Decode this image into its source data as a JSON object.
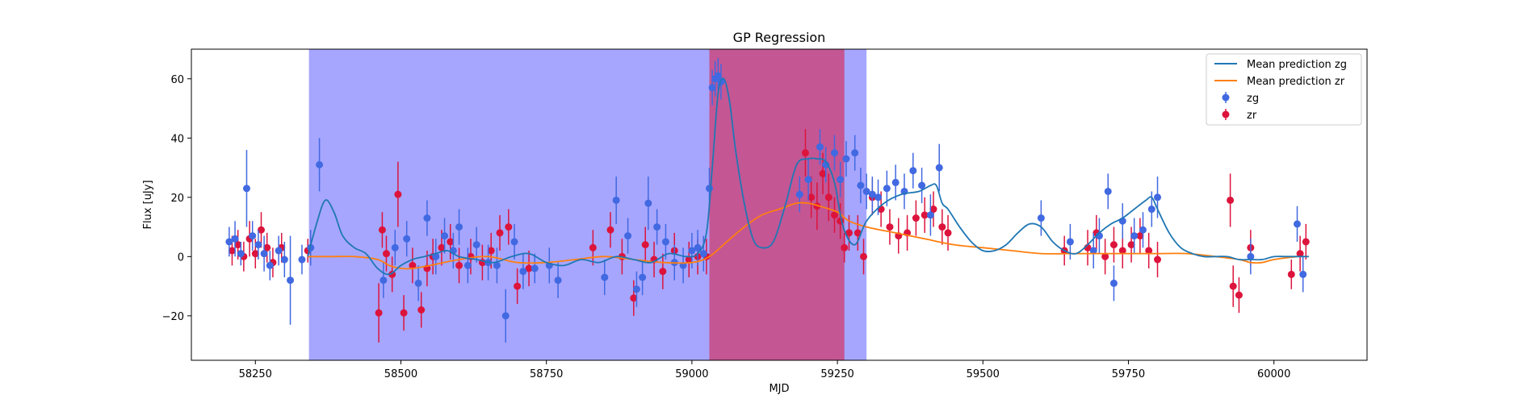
{
  "chart_data": {
    "type": "scatter",
    "title": "GP Regression",
    "xlabel": "MJD",
    "ylabel": "Flux [uJy]",
    "xlim": [
      58140,
      60160
    ],
    "ylim": [
      -35,
      70
    ],
    "xticks": [
      58250,
      58500,
      58750,
      59000,
      59250,
      59500,
      59750,
      60000
    ],
    "yticks": [
      -20,
      0,
      20,
      40,
      60
    ],
    "grid": false,
    "legend_position": "top-right",
    "colors": {
      "zg_line": "#1f77b4",
      "zr_line": "#ff7f0e",
      "zg_points": "#4169e1",
      "zr_points": "#dc143c",
      "span_blue": "#0000ff",
      "span_red": "#dc143c"
    },
    "shaded_regions": [
      {
        "x0": 58342,
        "x1": 59300,
        "color": "blue"
      },
      {
        "x0": 59030,
        "x1": 59262,
        "color": "red"
      }
    ],
    "series": [
      {
        "name": "Mean prediction zg",
        "kind": "line",
        "x": [
          58340,
          58355,
          58370,
          58385,
          58400,
          58420,
          58440,
          58460,
          58480,
          58500,
          58520,
          58540,
          58560,
          58580,
          58600,
          58630,
          58660,
          58690,
          58720,
          58750,
          58780,
          58810,
          58840,
          58870,
          58900,
          58930,
          58960,
          58990,
          59010,
          59025,
          59035,
          59045,
          59055,
          59065,
          59075,
          59090,
          59105,
          59120,
          59140,
          59160,
          59180,
          59200,
          59215,
          59230,
          59245,
          59260,
          59280,
          59300,
          59330,
          59360,
          59390,
          59410,
          59420,
          59430,
          59440,
          59460,
          59480,
          59500,
          59520,
          59540,
          59560,
          59580,
          59600,
          59620,
          59640,
          59660,
          59680,
          59700,
          59720,
          59740,
          59760,
          59780,
          59790,
          59800,
          59820,
          59840,
          59860,
          59880,
          59900,
          59920,
          59940,
          59960,
          59980,
          60000,
          60020,
          60040,
          60060
        ],
        "y": [
          0,
          11,
          19,
          15,
          7,
          3,
          1,
          -4,
          -6,
          -3,
          -1,
          0,
          1,
          2,
          0,
          -1,
          -2,
          0,
          1,
          -2,
          -3,
          -1,
          -2,
          0,
          -1,
          -2,
          1,
          0,
          1,
          8,
          30,
          55,
          60,
          52,
          36,
          18,
          6,
          3,
          5,
          17,
          31,
          33,
          33,
          32,
          25,
          10,
          4,
          12,
          18,
          21,
          22,
          24,
          24,
          18,
          16,
          10,
          5,
          2,
          2,
          4,
          8,
          11,
          10,
          5,
          2,
          1,
          4,
          8,
          11,
          13,
          16,
          19,
          20,
          16,
          8,
          3,
          1,
          0,
          0,
          0,
          -1,
          -1,
          -1,
          0,
          0,
          0,
          0
        ]
      },
      {
        "name": "Mean prediction zr",
        "kind": "line",
        "x": [
          58340,
          58380,
          58420,
          58460,
          58480,
          58500,
          58520,
          58550,
          58600,
          58650,
          58700,
          58750,
          58800,
          58850,
          58900,
          58950,
          59000,
          59030,
          59060,
          59090,
          59120,
          59150,
          59180,
          59200,
          59220,
          59250,
          59270,
          59300,
          59350,
          59400,
          59450,
          59500,
          59550,
          59600,
          59650,
          59700,
          59750,
          59800,
          59850,
          59900,
          59940,
          59960,
          59980,
          60000,
          60040
        ],
        "y": [
          0,
          0,
          0,
          -1,
          -3,
          -4,
          -4,
          -3,
          -1,
          0,
          -2,
          -2,
          -1,
          0,
          -1,
          -2,
          -2,
          0,
          5,
          10,
          14,
          16,
          18,
          18,
          17,
          15,
          12,
          10,
          8,
          6,
          4,
          3,
          2,
          1,
          1,
          1,
          1,
          1,
          1,
          0,
          -1,
          -2,
          -2,
          -1,
          0
        ]
      },
      {
        "name": "zg",
        "kind": "errorbar",
        "x": [
          58205,
          58215,
          58225,
          58235,
          58245,
          58255,
          58265,
          58275,
          58290,
          58300,
          58310,
          58330,
          58345,
          58360,
          58470,
          58490,
          58510,
          58530,
          58545,
          58560,
          58575,
          58590,
          58600,
          58615,
          58630,
          58650,
          58665,
          58680,
          58695,
          58710,
          58730,
          58755,
          58770,
          58850,
          58870,
          58890,
          58905,
          58915,
          58925,
          58940,
          58955,
          58970,
          58985,
          59000,
          59010,
          59020,
          59030,
          59035,
          59040,
          59045,
          59050,
          59185,
          59200,
          59220,
          59230,
          59245,
          59255,
          59265,
          59280,
          59290,
          59300,
          59310,
          59320,
          59335,
          59350,
          59365,
          59380,
          59395,
          59410,
          59425,
          59600,
          59650,
          59690,
          59700,
          59715,
          59725,
          59740,
          59760,
          59775,
          59790,
          59800,
          59960,
          60040,
          60050
        ],
        "y": [
          5,
          6,
          1,
          23,
          7,
          4,
          1,
          -3,
          2,
          -1,
          -8,
          -1,
          3,
          31,
          -8,
          3,
          6,
          -9,
          13,
          0,
          7,
          2,
          10,
          -3,
          4,
          -2,
          -3,
          -20,
          5,
          -5,
          -4,
          -3,
          -8,
          -7,
          19,
          7,
          -11,
          -7,
          18,
          10,
          5,
          -2,
          -3,
          2,
          3,
          1,
          23,
          57,
          60,
          61,
          59,
          21,
          26,
          37,
          31,
          35,
          26,
          33,
          35,
          24,
          22,
          21,
          20,
          23,
          25,
          22,
          29,
          24,
          14,
          30,
          13,
          5,
          2,
          7,
          22,
          -9,
          12,
          7,
          9,
          16,
          20,
          0,
          11,
          -6
        ],
        "err": [
          5,
          6,
          4,
          13,
          5,
          5,
          6,
          5,
          5,
          6,
          15,
          5,
          6,
          9,
          6,
          6,
          6,
          6,
          6,
          6,
          6,
          6,
          6,
          6,
          6,
          6,
          6,
          9,
          6,
          6,
          5,
          6,
          6,
          6,
          8,
          6,
          6,
          6,
          9,
          6,
          6,
          6,
          6,
          6,
          6,
          6,
          7,
          6,
          6,
          6,
          6,
          6,
          7,
          6,
          6,
          6,
          6,
          6,
          6,
          6,
          6,
          6,
          6,
          6,
          6,
          6,
          6,
          6,
          7,
          8,
          6,
          6,
          6,
          6,
          6,
          6,
          6,
          6,
          6,
          6,
          7,
          6,
          6,
          6
        ]
      },
      {
        "name": "zr",
        "kind": "errorbar",
        "x": [
          58210,
          58220,
          58230,
          58240,
          58250,
          58260,
          58270,
          58280,
          58295,
          58340,
          58462,
          58468,
          58475,
          58485,
          58495,
          58505,
          58520,
          58535,
          58545,
          58555,
          58570,
          58585,
          58600,
          58620,
          58640,
          58655,
          58670,
          58685,
          58700,
          58720,
          58830,
          58860,
          58880,
          58900,
          58920,
          58935,
          58950,
          58970,
          58995,
          59010,
          59025,
          59195,
          59205,
          59215,
          59225,
          59235,
          59245,
          59255,
          59262,
          59270,
          59285,
          59295,
          59310,
          59325,
          59340,
          59355,
          59370,
          59385,
          59400,
          59415,
          59430,
          59440,
          59640,
          59680,
          59695,
          59710,
          59725,
          59740,
          59755,
          59770,
          59785,
          59800,
          59925,
          59930,
          59940,
          59960,
          60030,
          60045,
          60055
        ],
        "y": [
          2,
          4,
          0,
          6,
          1,
          9,
          3,
          -2,
          3,
          2,
          -19,
          9,
          1,
          -6,
          21,
          -19,
          -3,
          -18,
          -4,
          0,
          3,
          5,
          -3,
          0,
          -2,
          2,
          8,
          10,
          -10,
          -4,
          3,
          9,
          0,
          -14,
          4,
          -1,
          -5,
          2,
          -1,
          0,
          0,
          35,
          20,
          17,
          28,
          20,
          14,
          12,
          3,
          8,
          8,
          0,
          20,
          16,
          10,
          7,
          8,
          13,
          14,
          16,
          10,
          8,
          2,
          3,
          8,
          0,
          4,
          2,
          4,
          7,
          2,
          -1,
          19,
          -10,
          -13,
          3,
          -6,
          1,
          5
        ],
        "err": [
          5,
          5,
          5,
          6,
          5,
          6,
          5,
          5,
          5,
          4,
          10,
          6,
          6,
          6,
          11,
          6,
          6,
          6,
          6,
          6,
          6,
          6,
          6,
          6,
          6,
          6,
          6,
          6,
          6,
          6,
          6,
          6,
          6,
          6,
          6,
          6,
          6,
          6,
          6,
          6,
          6,
          8,
          7,
          8,
          7,
          8,
          6,
          6,
          5,
          6,
          6,
          6,
          6,
          6,
          6,
          6,
          6,
          6,
          6,
          6,
          6,
          6,
          5,
          6,
          6,
          6,
          6,
          6,
          6,
          6,
          6,
          6,
          9,
          7,
          6,
          6,
          5,
          6,
          6
        ]
      }
    ]
  }
}
